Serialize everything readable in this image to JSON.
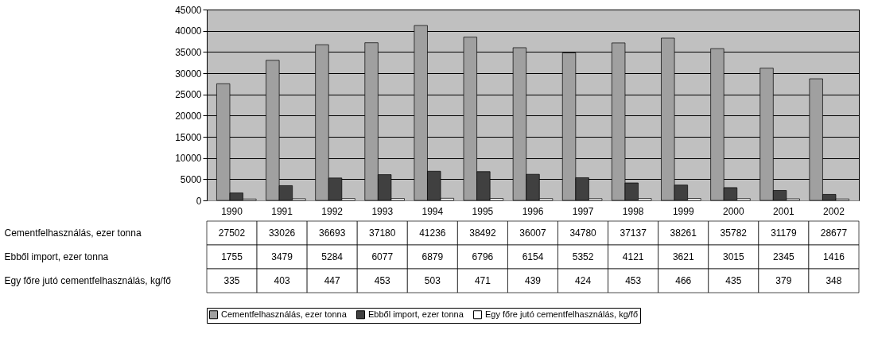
{
  "chart_data": {
    "type": "bar",
    "categories": [
      "1990",
      "1991",
      "1992",
      "1993",
      "1994",
      "1995",
      "1996",
      "1997",
      "1998",
      "1999",
      "2000",
      "2001",
      "2002"
    ],
    "series": [
      {
        "name": "Cementfelhasználás, ezer tonna",
        "color": "#a0a0a0",
        "values": [
          27502,
          33026,
          36693,
          37180,
          41236,
          38492,
          36007,
          34780,
          37137,
          38261,
          35782,
          31179,
          28677
        ]
      },
      {
        "name": "Ebből import, ezer tonna",
        "color": "#404040",
        "values": [
          1755,
          3479,
          5284,
          6077,
          6879,
          6796,
          6154,
          5352,
          4121,
          3621,
          3015,
          2345,
          1416
        ]
      },
      {
        "name": "Egy főre jutó cementfelhasználás, kg/fő",
        "color": "#ffffff",
        "values": [
          335,
          403,
          447,
          453,
          503,
          471,
          439,
          424,
          453,
          466,
          435,
          379,
          348
        ]
      }
    ],
    "ylim": [
      0,
      45000
    ],
    "yticks": [
      0,
      5000,
      10000,
      15000,
      20000,
      25000,
      30000,
      35000,
      40000,
      45000
    ],
    "grid": "y",
    "legend": "bottom",
    "data_labels": true
  }
}
